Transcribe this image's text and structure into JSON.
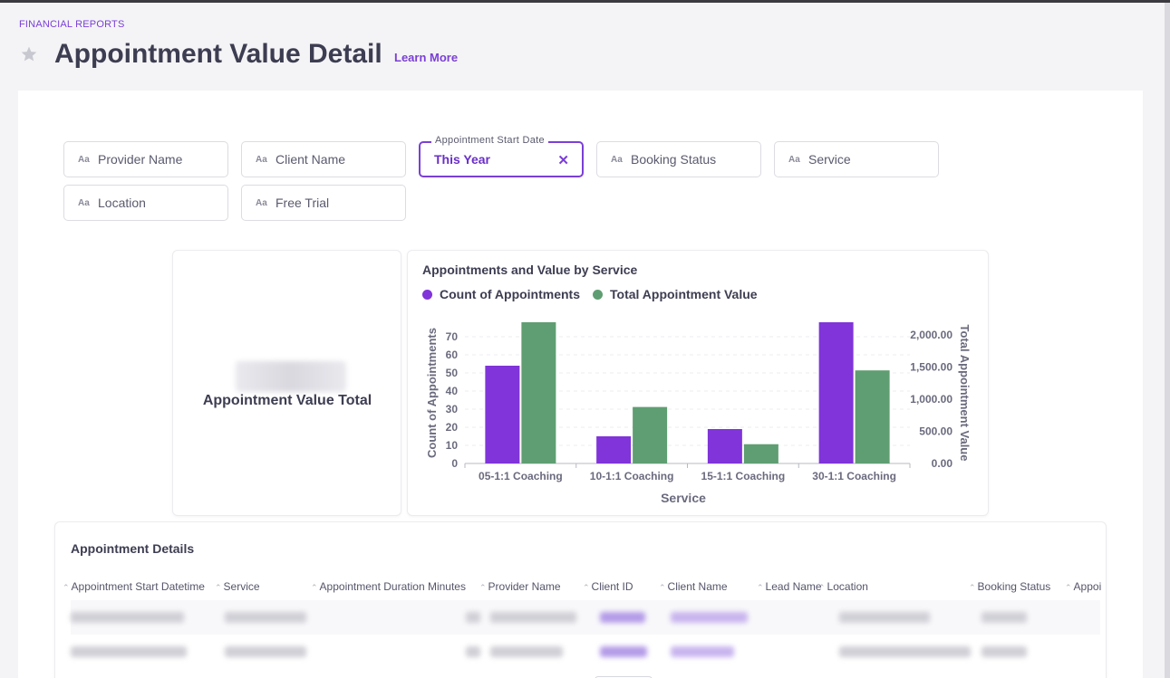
{
  "breadcrumb": "FINANCIAL REPORTS",
  "page_title": "Appointment Value Detail",
  "learn_more": "Learn More",
  "filters": [
    {
      "label": "Provider Name",
      "icon": "text-type-icon"
    },
    {
      "label": "Client Name",
      "icon": "text-type-icon"
    },
    {
      "label": "Appointment Start Date",
      "value": "This Year",
      "active": true
    },
    {
      "label": "Booking Status",
      "icon": "text-type-icon"
    },
    {
      "label": "Service",
      "icon": "text-type-icon"
    },
    {
      "label": "Location",
      "icon": "text-type-icon"
    },
    {
      "label": "Free Trial",
      "icon": "text-type-icon"
    }
  ],
  "filter_icon_text": "Aa",
  "kpi": {
    "label": "Appointment Value Total"
  },
  "chart": {
    "title": "Appointments and Value by Service",
    "legend": [
      "Count of Appointments",
      "Total Appointment Value"
    ]
  },
  "chart_data": {
    "type": "bar",
    "title": "Appointments and Value by Service",
    "xlabel": "Service",
    "ylabel": "Count of Appointments",
    "y2label": "Total Appointment Value",
    "categories": [
      "05-1:1 Coaching",
      "10-1:1 Coaching",
      "15-1:1 Coaching",
      "30-1:1 Coaching"
    ],
    "series": [
      {
        "name": "Count of Appointments",
        "axis": "left",
        "color": "#8034d9",
        "values": [
          54,
          15,
          19,
          78
        ]
      },
      {
        "name": "Total Appointment Value",
        "axis": "right",
        "color": "#5f9e72",
        "values": [
          2200,
          880,
          300,
          1450
        ]
      }
    ],
    "ylim": [
      0,
      78
    ],
    "y_ticks": [
      "0",
      "10",
      "20",
      "30",
      "40",
      "50",
      "60",
      "70"
    ],
    "y2lim": [
      0,
      2200
    ],
    "y2_ticks": [
      "0.00",
      "500.00",
      "1,000.00",
      "1,500.00",
      "2,000.00"
    ],
    "grid": true,
    "legend_position": "top-left"
  },
  "table": {
    "title": "Appointment Details",
    "columns": [
      "Appointment Start Datetime",
      "Service",
      "Appointment Duration Minutes",
      "Provider Name",
      "Client ID",
      "Client Name",
      "Lead Name",
      "Location",
      "Booking Status",
      "Appoin"
    ]
  },
  "colors": {
    "accent": "#7b3fd6",
    "purple_bar": "#8034d9",
    "green_bar": "#5f9e72"
  }
}
